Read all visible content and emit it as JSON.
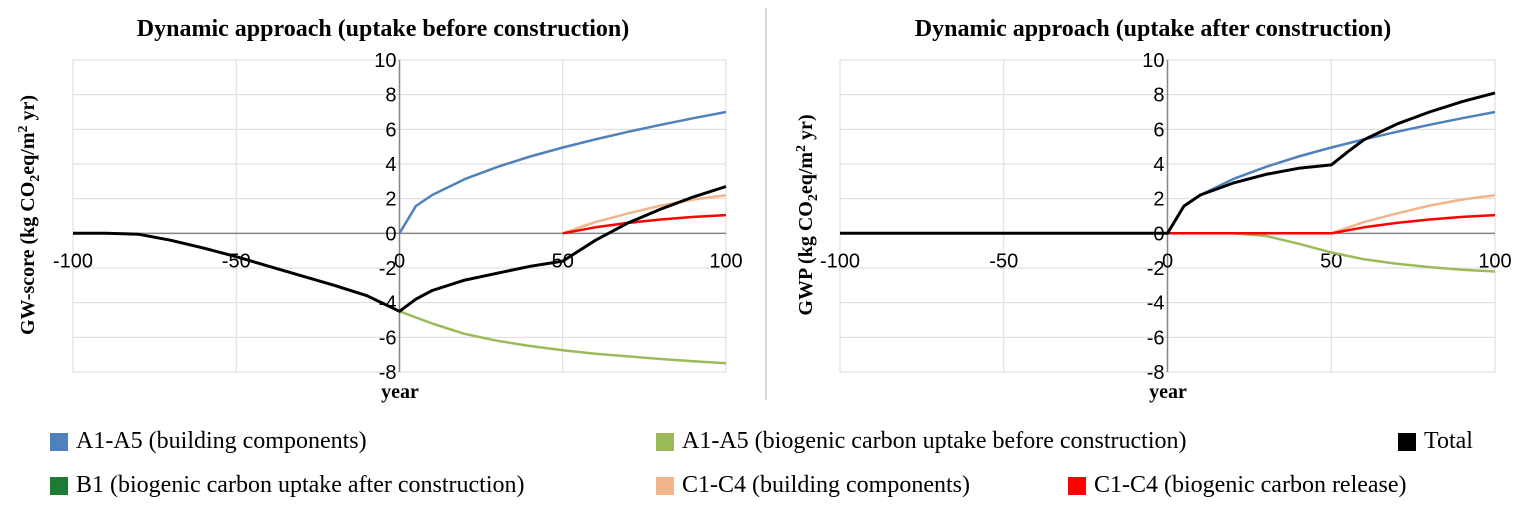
{
  "chart_data": [
    {
      "type": "line",
      "title": "Dynamic approach (uptake before construction)",
      "xlabel": "year",
      "ylabel": [
        "GW-score (kg CO",
        "2",
        "eq/m",
        "2",
        " yr)"
      ],
      "xlim": [
        -100,
        100
      ],
      "ylim": [
        -8,
        10
      ],
      "x_ticks": [
        "-100",
        "-50",
        "0",
        "50",
        "100"
      ],
      "y_ticks": [
        "-8",
        "-6",
        "-4",
        "-2",
        "0",
        "2",
        "4",
        "6",
        "8",
        "10"
      ],
      "grid": true,
      "series": [
        {
          "name": "A1-A5 (building components)",
          "color": "#4f81bd",
          "points": [
            [
              0,
              0
            ],
            [
              5,
              1.57
            ],
            [
              10,
              2.21
            ],
            [
              20,
              3.13
            ],
            [
              30,
              3.83
            ],
            [
              40,
              4.43
            ],
            [
              50,
              4.95
            ],
            [
              60,
              5.42
            ],
            [
              70,
              5.86
            ],
            [
              80,
              6.26
            ],
            [
              90,
              6.64
            ],
            [
              100,
              7.0
            ]
          ]
        },
        {
          "name": "A1-A5 (biogenic carbon uptake before construction)",
          "color": "#9bbb59",
          "points": [
            [
              0,
              -4.5
            ],
            [
              10,
              -5.2
            ],
            [
              20,
              -5.8
            ],
            [
              30,
              -6.2
            ],
            [
              40,
              -6.5
            ],
            [
              50,
              -6.75
            ],
            [
              60,
              -6.95
            ],
            [
              70,
              -7.1
            ],
            [
              80,
              -7.25
            ],
            [
              90,
              -7.38
            ],
            [
              100,
              -7.5
            ]
          ]
        },
        {
          "name": "C1-C4 (building components)",
          "color": "#f2b58a",
          "points": [
            [
              50,
              0
            ],
            [
              60,
              0.65
            ],
            [
              70,
              1.15
            ],
            [
              80,
              1.6
            ],
            [
              90,
              1.95
            ],
            [
              100,
              2.2
            ]
          ]
        },
        {
          "name": "C1-C4 (biogenic carbon release)",
          "color": "#ff0000",
          "points": [
            [
              50,
              0
            ],
            [
              60,
              0.35
            ],
            [
              70,
              0.6
            ],
            [
              80,
              0.8
            ],
            [
              90,
              0.95
            ],
            [
              100,
              1.05
            ]
          ]
        },
        {
          "name": "Total",
          "color": "#000000",
          "points": [
            [
              -100,
              0
            ],
            [
              -90,
              0
            ],
            [
              -80,
              -0.05
            ],
            [
              -70,
              -0.4
            ],
            [
              -60,
              -0.85
            ],
            [
              -50,
              -1.35
            ],
            [
              -40,
              -1.9
            ],
            [
              -30,
              -2.45
            ],
            [
              -20,
              -3.0
            ],
            [
              -10,
              -3.6
            ],
            [
              0,
              -4.5
            ],
            [
              5,
              -3.8
            ],
            [
              10,
              -3.3
            ],
            [
              20,
              -2.7
            ],
            [
              30,
              -2.3
            ],
            [
              40,
              -1.9
            ],
            [
              50,
              -1.6
            ],
            [
              60,
              -0.4
            ],
            [
              70,
              0.6
            ],
            [
              80,
              1.4
            ],
            [
              90,
              2.1
            ],
            [
              100,
              2.7
            ]
          ]
        }
      ]
    },
    {
      "type": "line",
      "title": "Dynamic approach (uptake after construction)",
      "xlabel": "year",
      "ylabel": [
        "GWP (kg CO",
        "2",
        "eq/m",
        "2",
        " yr)"
      ],
      "xlim": [
        -100,
        100
      ],
      "ylim": [
        -8,
        10
      ],
      "x_ticks": [
        "-100",
        "-50",
        "0",
        "50",
        "100"
      ],
      "y_ticks": [
        "-8",
        "-6",
        "-4",
        "-2",
        "0",
        "2",
        "4",
        "6",
        "8",
        "10"
      ],
      "grid": true,
      "series": [
        {
          "name": "A1-A5 (building components)",
          "color": "#4f81bd",
          "points": [
            [
              0,
              0
            ],
            [
              5,
              1.57
            ],
            [
              10,
              2.21
            ],
            [
              20,
              3.13
            ],
            [
              30,
              3.83
            ],
            [
              40,
              4.43
            ],
            [
              50,
              4.95
            ],
            [
              60,
              5.42
            ],
            [
              70,
              5.86
            ],
            [
              80,
              6.26
            ],
            [
              90,
              6.64
            ],
            [
              100,
              7.0
            ]
          ]
        },
        {
          "name": "B1 (biogenic carbon uptake after construction)",
          "color": "#9bbb59",
          "points": [
            [
              0,
              0
            ],
            [
              20,
              0
            ],
            [
              30,
              -0.15
            ],
            [
              40,
              -0.6
            ],
            [
              50,
              -1.1
            ],
            [
              60,
              -1.5
            ],
            [
              70,
              -1.75
            ],
            [
              80,
              -1.95
            ],
            [
              90,
              -2.1
            ],
            [
              100,
              -2.2
            ]
          ]
        },
        {
          "name": "C1-C4 (building components)",
          "color": "#f2b58a",
          "points": [
            [
              50,
              0
            ],
            [
              60,
              0.65
            ],
            [
              70,
              1.15
            ],
            [
              80,
              1.6
            ],
            [
              90,
              1.95
            ],
            [
              100,
              2.2
            ]
          ]
        },
        {
          "name": "C1-C4 (biogenic carbon release)",
          "color": "#ff0000",
          "points": [
            [
              -100,
              0
            ],
            [
              50,
              0
            ],
            [
              60,
              0.35
            ],
            [
              70,
              0.6
            ],
            [
              80,
              0.8
            ],
            [
              90,
              0.95
            ],
            [
              100,
              1.05
            ]
          ]
        },
        {
          "name": "Total",
          "color": "#000000",
          "points": [
            [
              -100,
              0
            ],
            [
              0,
              0
            ],
            [
              5,
              1.57
            ],
            [
              10,
              2.21
            ],
            [
              20,
              2.9
            ],
            [
              30,
              3.4
            ],
            [
              40,
              3.75
            ],
            [
              50,
              3.95
            ],
            [
              55,
              4.7
            ],
            [
              60,
              5.4
            ],
            [
              70,
              6.3
            ],
            [
              80,
              7.0
            ],
            [
              90,
              7.6
            ],
            [
              100,
              8.1
            ]
          ]
        }
      ]
    }
  ],
  "legend": [
    {
      "label": "A1-A5 (building components)",
      "color": "#4f81bd"
    },
    {
      "label": "A1-A5 (biogenic carbon uptake before construction)",
      "color": "#9bbb59"
    },
    {
      "label": "Total",
      "color": "#000000"
    },
    {
      "label": "B1 (biogenic carbon uptake after construction)",
      "color": "#1e7b34"
    },
    {
      "label": "C1-C4 (building components)",
      "color": "#f2b58a"
    },
    {
      "label": "C1-C4 (biogenic carbon release)",
      "color": "#ff0000"
    }
  ]
}
